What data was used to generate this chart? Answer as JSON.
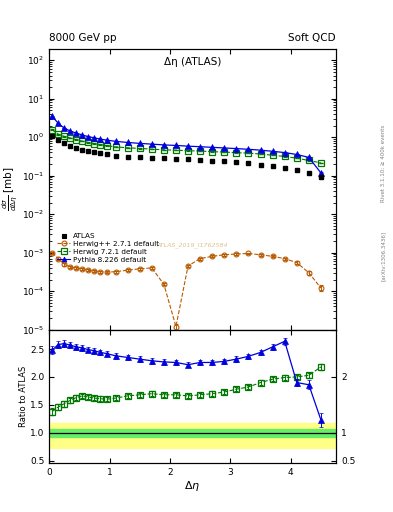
{
  "title_top": "8000 GeV pp",
  "title_right": "Soft QCD",
  "plot_title": "Δη (ATLAS)",
  "ylabel_main": "$\\frac{d\\sigma}{d\\Delta\\eta}$ [mb]",
  "ylabel_ratio": "Ratio to ATLAS",
  "xlabel": "$\\Delta\\eta$",
  "right_label": "Rivet 3.1.10; ≥ 400k events",
  "paper_label": "[arXiv:1306.3436]",
  "watermark": "ATLAS_2019_I1762584",
  "atlas_x": [
    0.05,
    0.15,
    0.25,
    0.35,
    0.45,
    0.55,
    0.65,
    0.75,
    0.85,
    0.95,
    1.1,
    1.3,
    1.5,
    1.7,
    1.9,
    2.1,
    2.3,
    2.5,
    2.7,
    2.9,
    3.1,
    3.3,
    3.5,
    3.7,
    3.9,
    4.1,
    4.3,
    4.5
  ],
  "atlas_y": [
    1.05,
    0.82,
    0.7,
    0.6,
    0.52,
    0.47,
    0.43,
    0.4,
    0.38,
    0.36,
    0.33,
    0.31,
    0.3,
    0.29,
    0.28,
    0.27,
    0.265,
    0.255,
    0.245,
    0.235,
    0.22,
    0.21,
    0.195,
    0.175,
    0.158,
    0.14,
    0.118,
    0.095
  ],
  "atlas_yerr": [
    0.04,
    0.03,
    0.025,
    0.02,
    0.018,
    0.015,
    0.013,
    0.012,
    0.011,
    0.01,
    0.009,
    0.008,
    0.008,
    0.007,
    0.007,
    0.007,
    0.006,
    0.006,
    0.006,
    0.005,
    0.005,
    0.005,
    0.005,
    0.004,
    0.004,
    0.004,
    0.004,
    0.003
  ],
  "hw271_x": [
    0.05,
    0.15,
    0.25,
    0.35,
    0.45,
    0.55,
    0.65,
    0.75,
    0.85,
    0.95,
    1.1,
    1.3,
    1.5,
    1.7,
    1.9,
    2.1,
    2.3,
    2.5,
    2.7,
    2.9,
    3.1,
    3.3,
    3.5,
    3.7,
    3.9,
    4.1,
    4.3,
    4.5
  ],
  "hw271_y": [
    0.001,
    0.0007,
    0.0005,
    0.00042,
    0.0004,
    0.00038,
    0.00035,
    0.00033,
    0.00032,
    0.00031,
    0.00032,
    0.00035,
    0.00038,
    0.0004,
    0.00015,
    1.2e-05,
    0.00045,
    0.0007,
    0.0008,
    0.00088,
    0.00092,
    0.00095,
    0.00088,
    0.0008,
    0.0007,
    0.00055,
    0.0003,
    0.00012
  ],
  "hw271_yerr": [
    6e-05,
    5e-05,
    4e-05,
    3e-05,
    3e-05,
    3e-05,
    2e-05,
    2e-05,
    2e-05,
    2e-05,
    2e-05,
    2e-05,
    2e-05,
    2e-05,
    1e-05,
    2e-06,
    3e-05,
    4e-05,
    5e-05,
    5e-05,
    5e-05,
    5e-05,
    5e-05,
    5e-05,
    4e-05,
    4e-05,
    3e-05,
    2e-05
  ],
  "hw721_x": [
    0.05,
    0.15,
    0.25,
    0.35,
    0.45,
    0.55,
    0.65,
    0.75,
    0.85,
    0.95,
    1.1,
    1.3,
    1.5,
    1.7,
    1.9,
    2.1,
    2.3,
    2.5,
    2.7,
    2.9,
    3.1,
    3.3,
    3.5,
    3.7,
    3.9,
    4.1,
    4.3,
    4.5
  ],
  "hw721_y": [
    1.55,
    1.2,
    1.05,
    0.95,
    0.86,
    0.79,
    0.73,
    0.68,
    0.64,
    0.6,
    0.56,
    0.53,
    0.51,
    0.49,
    0.47,
    0.46,
    0.445,
    0.435,
    0.42,
    0.41,
    0.395,
    0.385,
    0.365,
    0.34,
    0.315,
    0.285,
    0.248,
    0.215
  ],
  "hw721_yerr": [
    0.04,
    0.03,
    0.025,
    0.02,
    0.016,
    0.014,
    0.012,
    0.011,
    0.01,
    0.009,
    0.009,
    0.008,
    0.007,
    0.007,
    0.007,
    0.006,
    0.006,
    0.006,
    0.006,
    0.005,
    0.005,
    0.005,
    0.005,
    0.004,
    0.004,
    0.004,
    0.004,
    0.003
  ],
  "py826_x": [
    0.05,
    0.15,
    0.25,
    0.35,
    0.45,
    0.55,
    0.65,
    0.75,
    0.85,
    0.95,
    1.1,
    1.3,
    1.5,
    1.7,
    1.9,
    2.1,
    2.3,
    2.5,
    2.7,
    2.9,
    3.1,
    3.3,
    3.5,
    3.7,
    3.9,
    4.1,
    4.3,
    4.5
  ],
  "py826_y": [
    3.5,
    2.3,
    1.72,
    1.45,
    1.27,
    1.14,
    1.03,
    0.96,
    0.89,
    0.84,
    0.78,
    0.73,
    0.69,
    0.66,
    0.63,
    0.61,
    0.585,
    0.565,
    0.545,
    0.525,
    0.505,
    0.485,
    0.46,
    0.43,
    0.398,
    0.355,
    0.298,
    0.118
  ],
  "py826_yerr": [
    0.07,
    0.05,
    0.035,
    0.028,
    0.024,
    0.021,
    0.018,
    0.017,
    0.015,
    0.014,
    0.013,
    0.012,
    0.011,
    0.01,
    0.01,
    0.009,
    0.009,
    0.009,
    0.008,
    0.008,
    0.008,
    0.007,
    0.007,
    0.007,
    0.006,
    0.006,
    0.005,
    0.004
  ],
  "ratio_hw721_y": [
    1.38,
    1.46,
    1.52,
    1.58,
    1.63,
    1.66,
    1.64,
    1.62,
    1.61,
    1.6,
    1.62,
    1.66,
    1.68,
    1.7,
    1.68,
    1.68,
    1.66,
    1.68,
    1.7,
    1.73,
    1.78,
    1.82,
    1.9,
    1.96,
    1.99,
    2.0,
    2.03,
    2.18
  ],
  "ratio_hw721_yerr": [
    0.06,
    0.05,
    0.05,
    0.04,
    0.04,
    0.04,
    0.04,
    0.04,
    0.04,
    0.04,
    0.04,
    0.04,
    0.04,
    0.04,
    0.04,
    0.04,
    0.04,
    0.04,
    0.04,
    0.04,
    0.04,
    0.04,
    0.04,
    0.04,
    0.04,
    0.04,
    0.04,
    0.06
  ],
  "ratio_py826_y": [
    2.48,
    2.58,
    2.6,
    2.57,
    2.54,
    2.52,
    2.49,
    2.47,
    2.44,
    2.42,
    2.38,
    2.35,
    2.32,
    2.29,
    2.27,
    2.26,
    2.22,
    2.26,
    2.26,
    2.28,
    2.32,
    2.37,
    2.44,
    2.54,
    2.64,
    1.9,
    1.86,
    1.23
  ],
  "ratio_py826_yerr": [
    0.07,
    0.06,
    0.06,
    0.05,
    0.05,
    0.05,
    0.05,
    0.05,
    0.05,
    0.05,
    0.05,
    0.05,
    0.05,
    0.05,
    0.05,
    0.05,
    0.05,
    0.05,
    0.05,
    0.05,
    0.05,
    0.05,
    0.05,
    0.05,
    0.06,
    0.07,
    0.08,
    0.12
  ],
  "atlas_color": "#000000",
  "hw271_color": "#b85a00",
  "hw721_color": "#007700",
  "py826_color": "#0000dd",
  "green_band_inner_lo": 0.93,
  "green_band_inner_hi": 1.07,
  "yellow_band_outer_lo": 0.72,
  "yellow_band_outer_hi": 1.17,
  "xlim": [
    0,
    4.75
  ],
  "ylim_main": [
    1e-05,
    200
  ],
  "ylim_ratio": [
    0.45,
    2.85
  ]
}
